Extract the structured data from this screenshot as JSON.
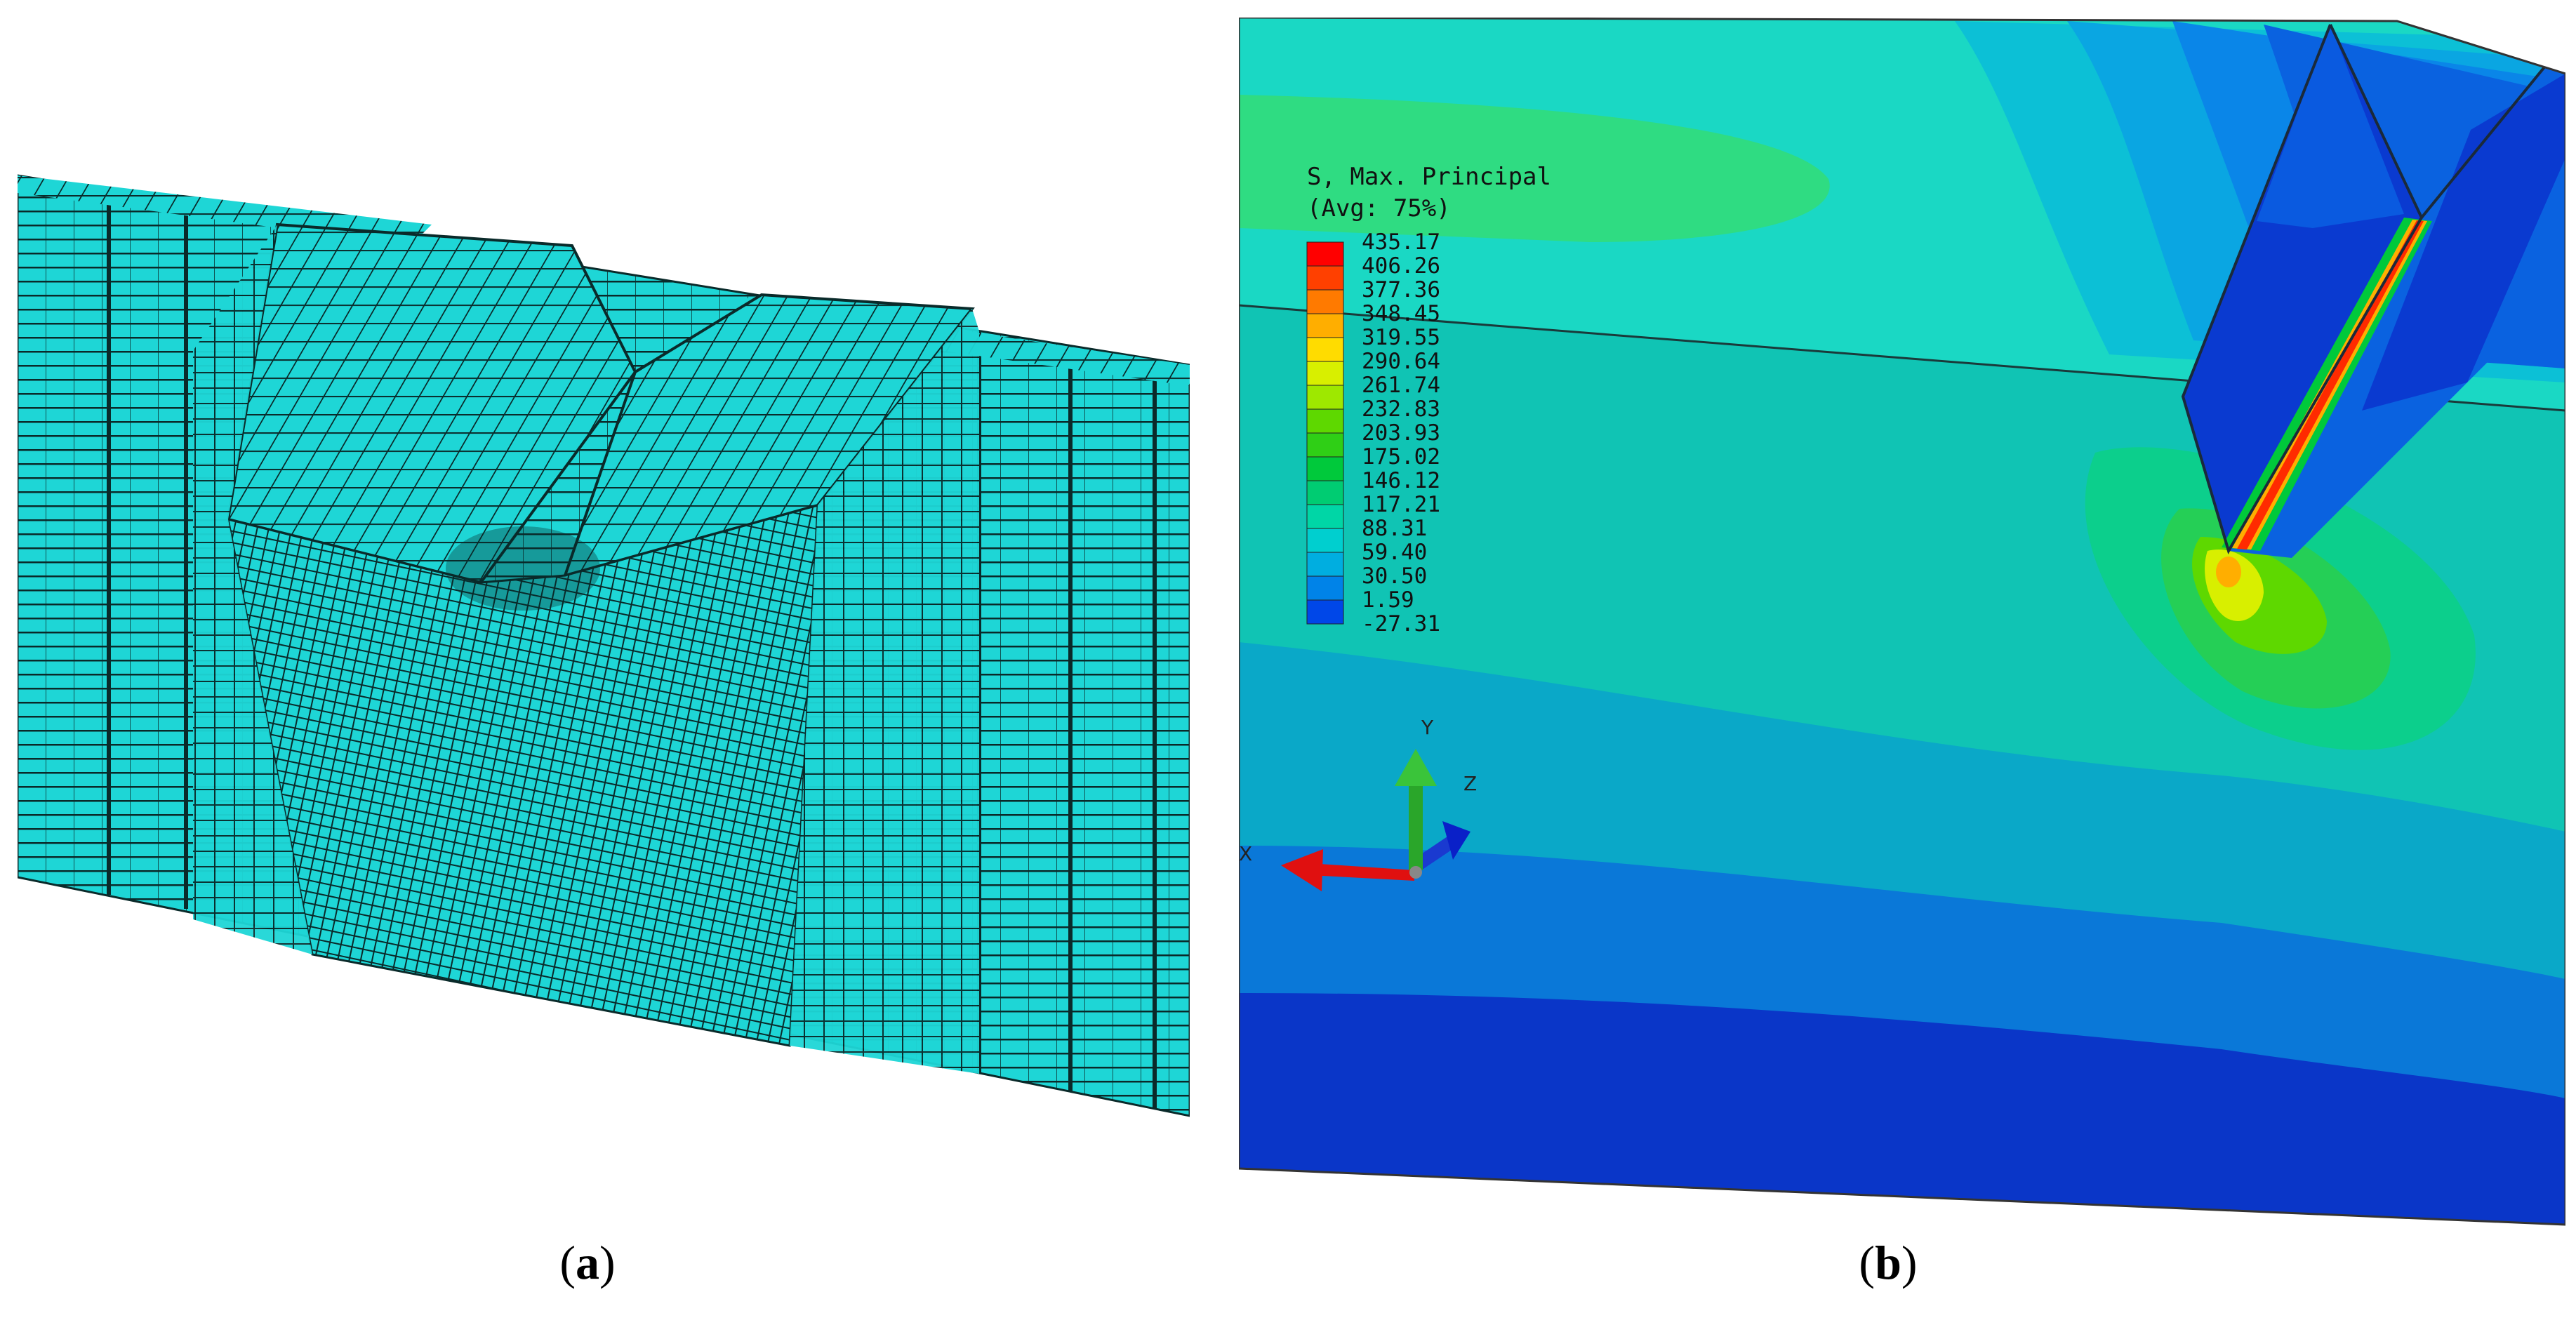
{
  "captions": {
    "a": "a",
    "b": "b"
  },
  "legend": {
    "title_line1": "S, Max. Principal",
    "title_line2": "(Avg: 75%)",
    "values": [
      "435.17",
      "406.26",
      "377.36",
      "348.45",
      "319.55",
      "290.64",
      "261.74",
      "232.83",
      "203.93",
      "175.02",
      "146.12",
      "117.21",
      "88.31",
      "59.40",
      "30.50",
      "1.59",
      "-27.31"
    ],
    "colors": [
      "#ff0000",
      "#ff4000",
      "#ff7a00",
      "#ffae00",
      "#ffdc00",
      "#d8ef00",
      "#9ee800",
      "#5ed800",
      "#2fcf16",
      "#00c93b",
      "#00cc72",
      "#00d6a6",
      "#00cfcf",
      "#00aee0",
      "#0083e8",
      "#0047e8",
      "#0018d4"
    ]
  },
  "triad": {
    "x": "X",
    "y": "Y",
    "z": "Z"
  },
  "colors": {
    "mesh_fill": "#1ed6d6",
    "mesh_line": "#0a2a2a",
    "contour_base": "#10c4b4"
  }
}
